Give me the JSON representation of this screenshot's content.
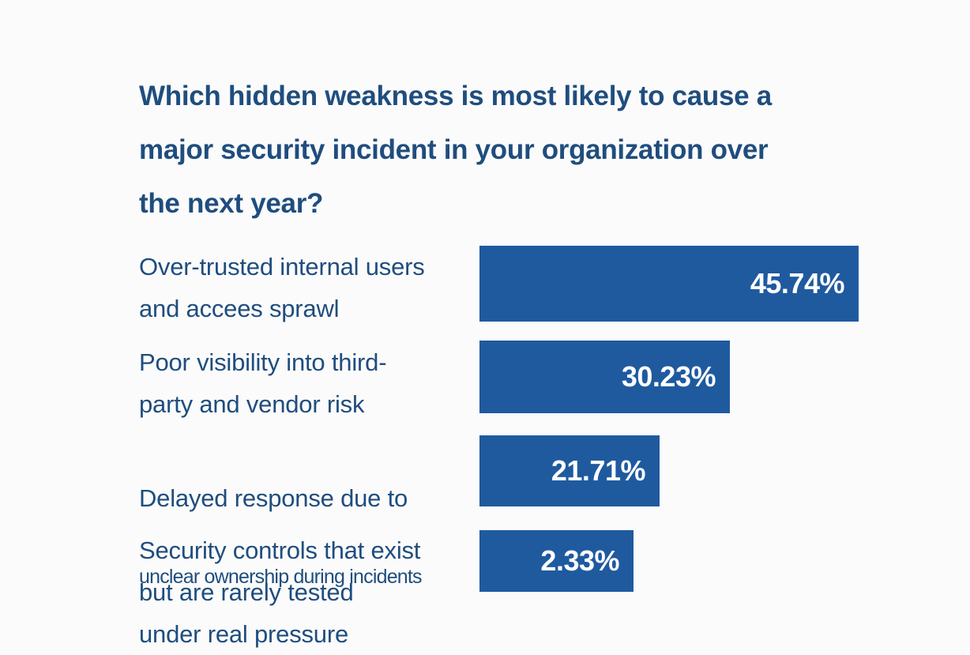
{
  "chart_data": {
    "type": "bar",
    "orientation": "horizontal",
    "title": "Which hidden weakness is most likely to cause a major security incident in your organization over the next year?",
    "categories": [
      "Over-trusted internal users and accees sprawl",
      "Poor visibility into third-party and vendor risk",
      "Delayed response due to unclear ownership during incidents",
      "Security controls that exist but are rarely tested under real pressure"
    ],
    "values": [
      45.74,
      30.23,
      21.71,
      2.33
    ],
    "value_labels": [
      "45.74%",
      "30.23%",
      "21.71%",
      "2.33%"
    ],
    "unit": "%",
    "grid": false,
    "legend": "none",
    "bar_color": "#1f5a9f"
  },
  "question": {
    "line1": "Which hidden weakness is most likely to cause a",
    "line2": "major security incident in your organization over",
    "line3": "the next year?"
  },
  "rows": [
    {
      "label": "Over-trusted internal users\nand accees sprawl",
      "value_label": "45.74%"
    },
    {
      "label": "Poor visibility into third-\nparty and vendor risk",
      "value_label": "30.23%"
    },
    {
      "label": "Delayed response due to\nunclear ownership during incidents",
      "value_label": "21.71%"
    },
    {
      "label": "Security controls that exist\nbut are rarely tested\nunder real pressure",
      "value_label": "2.33%"
    }
  ],
  "colors": {
    "text": "#1f4d7e",
    "bar": "#1f5a9f",
    "background": "#fbfbfb"
  }
}
